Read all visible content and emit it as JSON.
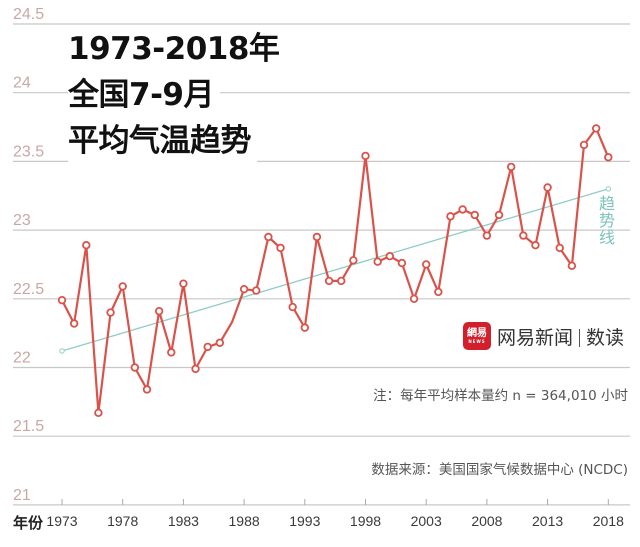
{
  "title": {
    "line1": "1973-2018年",
    "line2": "全国7-9月",
    "line3": "平均气温趋势"
  },
  "trend_label": "趋势线",
  "brand": {
    "logo_text": "網易",
    "logo_sub": "NEWS",
    "name": "网易新闻",
    "section": "数读"
  },
  "note": "注：每年平均样本量约 n = 364,010 小时",
  "source": "数据来源：美国国家气候数据中心 (NCDC)",
  "colors": {
    "series": "#d9534a",
    "trend": "#8fcdc6",
    "grid": "#c8c8c8",
    "ytick": "#c9a7a5"
  },
  "chart_data": {
    "type": "line",
    "title": "1973-2018年 全国7-9月 平均气温趋势",
    "xlabel": "年份",
    "ylabel": "",
    "ylim": [
      21,
      24.5
    ],
    "yticks": [
      21,
      21.5,
      22,
      22.5,
      23,
      23.5,
      24,
      24.5
    ],
    "ytick_labels": [
      "21",
      "21.5",
      "22",
      "22.5",
      "23",
      "23.5",
      "24",
      "24.5"
    ],
    "xticks": [
      1973,
      1978,
      1983,
      1988,
      1993,
      1998,
      2003,
      2008,
      2013,
      2018
    ],
    "xtick_labels": [
      "1973",
      "1978",
      "1983",
      "1988",
      "1993",
      "1998",
      "2003",
      "2008",
      "2013",
      "2018"
    ],
    "grid": "horizontal",
    "legend": "none",
    "x": [
      1973,
      1974,
      1975,
      1976,
      1977,
      1978,
      1979,
      1980,
      1981,
      1982,
      1983,
      1984,
      1985,
      1986,
      1987,
      1988,
      1989,
      1990,
      1991,
      1992,
      1993,
      1994,
      1995,
      1996,
      1997,
      1998,
      1999,
      2000,
      2001,
      2002,
      2003,
      2004,
      2005,
      2006,
      2007,
      2008,
      2009,
      2010,
      2011,
      2012,
      2013,
      2014,
      2015,
      2016,
      2017,
      2018
    ],
    "series": [
      {
        "name": "平均气温",
        "values": [
          22.49,
          22.32,
          22.89,
          21.67,
          22.4,
          22.59,
          22.0,
          21.84,
          22.41,
          22.11,
          22.61,
          21.99,
          22.15,
          22.18,
          22.33,
          22.57,
          22.56,
          22.95,
          22.87,
          22.44,
          22.29,
          22.95,
          22.63,
          22.63,
          22.78,
          23.54,
          22.77,
          22.81,
          22.76,
          22.5,
          22.75,
          22.55,
          23.1,
          23.15,
          23.11,
          22.96,
          23.11,
          23.46,
          22.96,
          22.89,
          23.31,
          22.87,
          22.74,
          23.62,
          23.74,
          23.53
        ],
        "hidden_markers": [
          1987
        ]
      },
      {
        "name": "趋势线",
        "type": "linear-trend",
        "x": [
          1973,
          2018
        ],
        "values": [
          22.12,
          23.3
        ]
      }
    ],
    "annotations": [
      "趋势线",
      "注：每年平均样本量约 n = 364,010 小时",
      "数据来源：美国国家气候数据中心 (NCDC)"
    ]
  }
}
